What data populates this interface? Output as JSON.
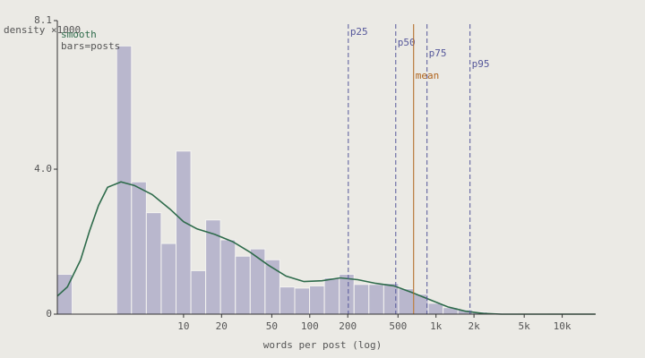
{
  "chart_data": {
    "type": "histogram",
    "xlabel": "words per post (log)",
    "ylabel": "density ×1000",
    "bar_label": "bars=posts",
    "xscale": "log",
    "xlim": [
      1,
      20000
    ],
    "ylim": [
      0,
      8.1
    ],
    "yticks": [
      0,
      {
        "value": 4,
        "label": "4.0"
      },
      8.1
    ],
    "xticks": [
      10,
      20,
      50,
      100,
      200,
      500,
      {
        "value": 1000,
        "label": "1k"
      },
      {
        "value": 2000,
        "label": "2k"
      },
      {
        "value": 5000,
        "label": "5k"
      },
      {
        "value": 10000,
        "label": "10k"
      }
    ],
    "color": "#b9b7cd",
    "bins": [
      1,
      1.311,
      1.718,
      2.252,
      2.952,
      3.87,
      5.073,
      6.65,
      8.717,
      11.43,
      14.98,
      19.63,
      25.74,
      33.74,
      44.22,
      57.97,
      75.99,
      99.62,
      130.6,
      171.2,
      224.4,
      294.1,
      385.6,
      505.4,
      662.6,
      868.6,
      1139,
      1493,
      1957,
      2565,
      3363,
      4408,
      5779,
      7575,
      9930,
      13017,
      17064
    ],
    "values": [
      1.1,
      0,
      0,
      0,
      7.4,
      3.65,
      2.8,
      1.95,
      4.5,
      1.2,
      2.6,
      2.05,
      1.6,
      1.8,
      1.5,
      0.75,
      0.72,
      0.78,
      1.0,
      1.1,
      0.82,
      0.82,
      0.85,
      0.7,
      0.55,
      0.3,
      0.18,
      0.12,
      0.06,
      0.03,
      0.02,
      0.01,
      0.01,
      0,
      0,
      0
    ],
    "smooth": {
      "name": "smooth",
      "color": "#2e6b4b",
      "x": [
        1,
        1.2,
        1.53,
        1.8,
        2.12,
        2.5,
        3.19,
        4.07,
        5.64,
        7.8,
        10,
        12.8,
        17.7,
        24.5,
        34,
        47,
        65,
        90,
        125,
        174,
        240,
        333,
        464,
        643,
        890,
        1240,
        1720,
        2380,
        3300,
        18300
      ],
      "values": [
        0.5,
        0.75,
        1.5,
        2.3,
        3.0,
        3.5,
        3.65,
        3.55,
        3.3,
        2.9,
        2.55,
        2.35,
        2.2,
        2.0,
        1.7,
        1.35,
        1.05,
        0.9,
        0.92,
        1.0,
        0.95,
        0.85,
        0.78,
        0.6,
        0.4,
        0.2,
        0.08,
        0.02,
        0,
        0
      ]
    },
    "markers": [
      {
        "label": "p25",
        "value": 202,
        "color": "#55579a"
      },
      {
        "label": "p50",
        "value": 480,
        "color": "#55579a"
      },
      {
        "label": "mean",
        "value": 665,
        "color": "#b0651e"
      },
      {
        "label": "p75",
        "value": 849,
        "color": "#55579a"
      },
      {
        "label": "p95",
        "value": 1860,
        "color": "#55579a"
      }
    ]
  }
}
